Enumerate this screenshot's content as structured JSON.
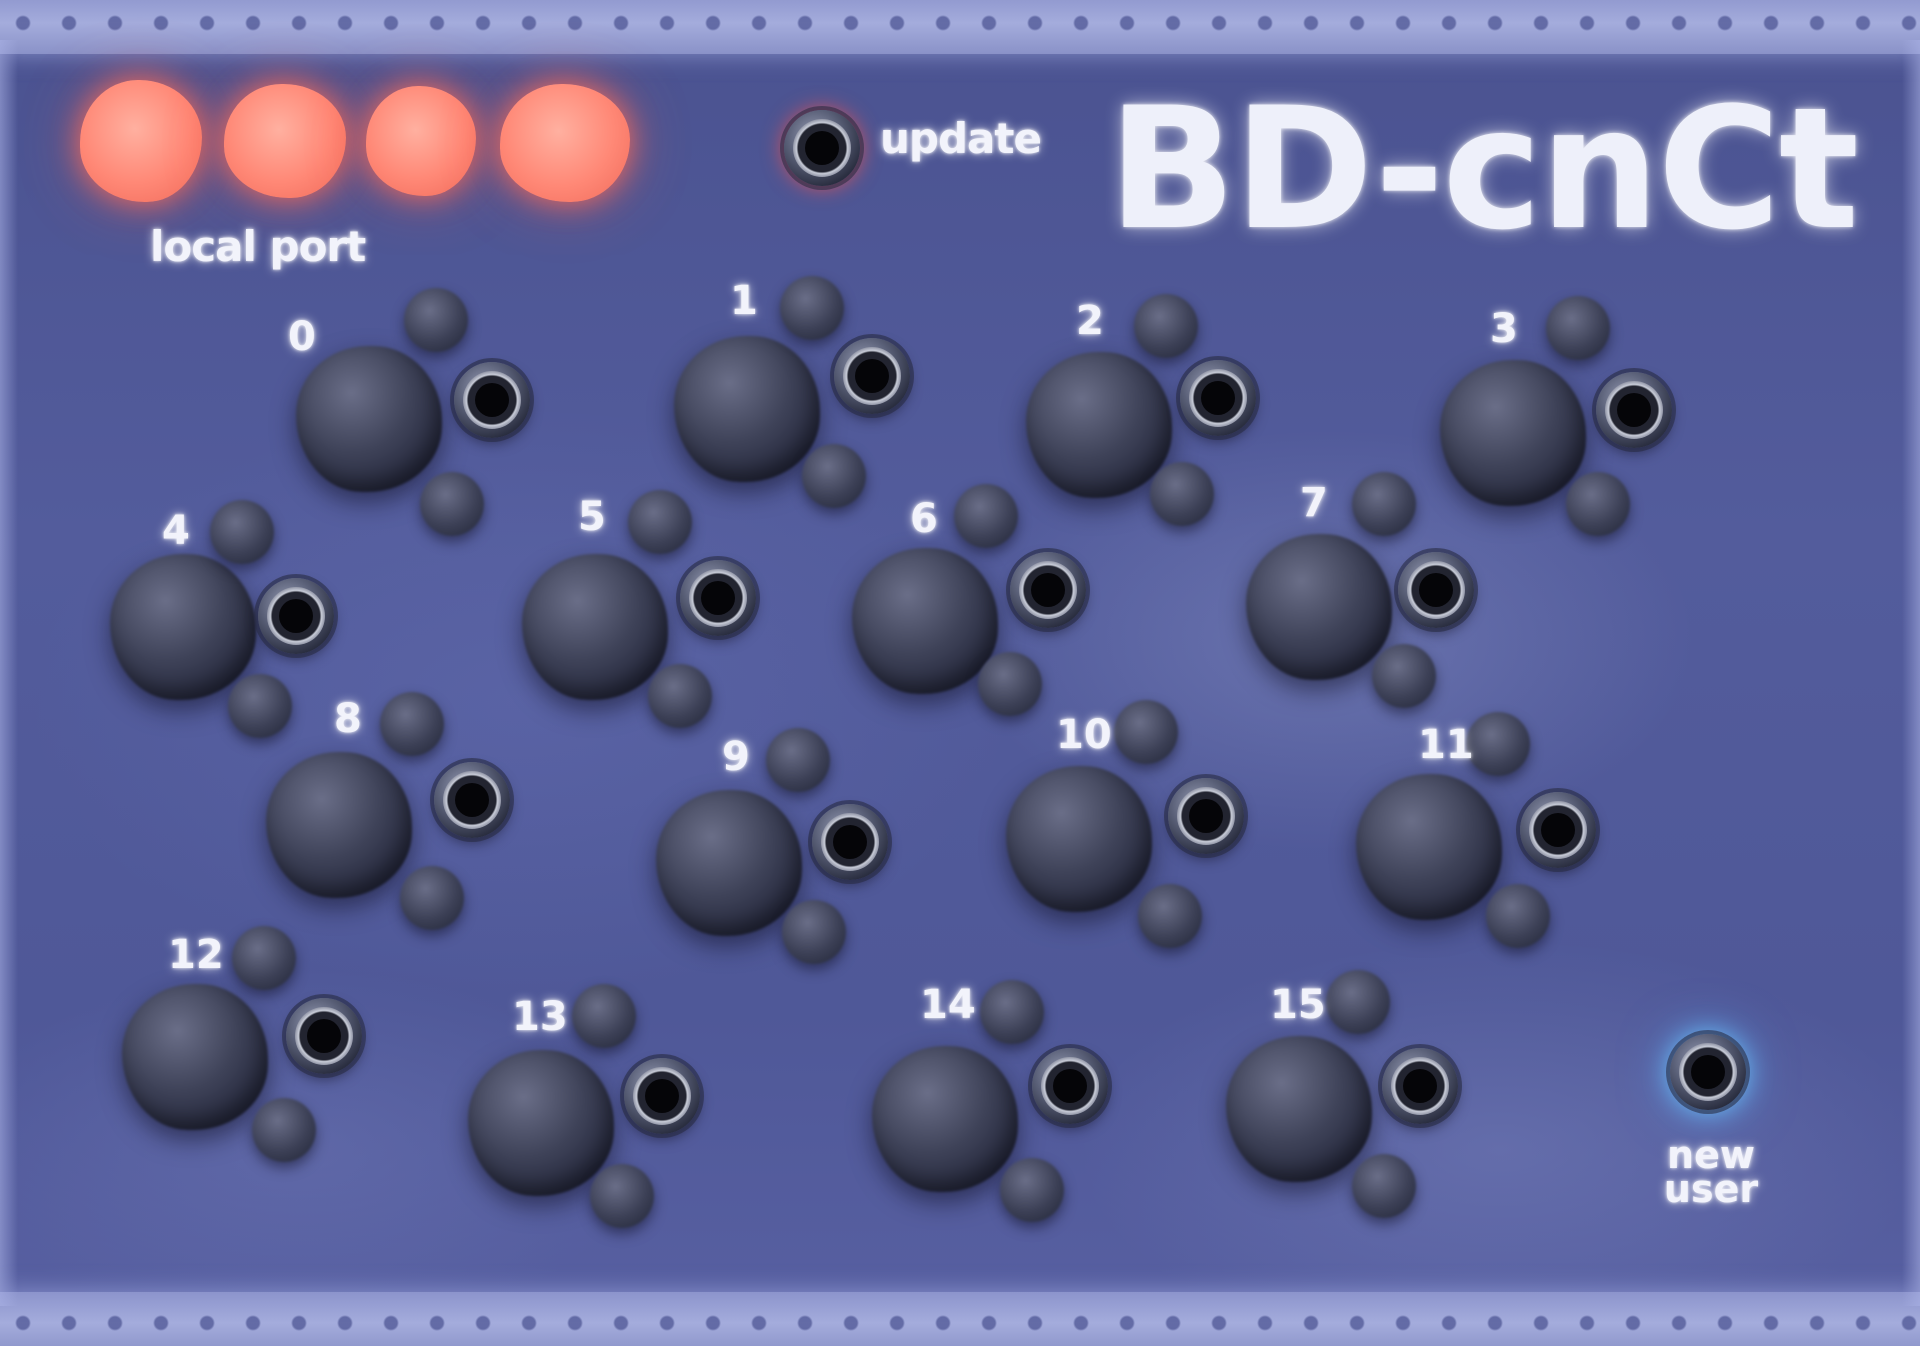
{
  "title": "BD-cnCt",
  "local_port": {
    "label": "local port",
    "led_count": 4
  },
  "update": {
    "label": "update"
  },
  "new_user": {
    "label": "new\nuser"
  },
  "channels": [
    "0",
    "1",
    "2",
    "3",
    "4",
    "5",
    "6",
    "7",
    "8",
    "9",
    "10",
    "11",
    "12",
    "13",
    "14",
    "15"
  ],
  "colors": {
    "panel": "#4f5898",
    "led": "#ff8876",
    "text": "#f2f3fb",
    "jack_glow_red": "#ff5046",
    "jack_glow_blue": "#6ec8ff"
  }
}
